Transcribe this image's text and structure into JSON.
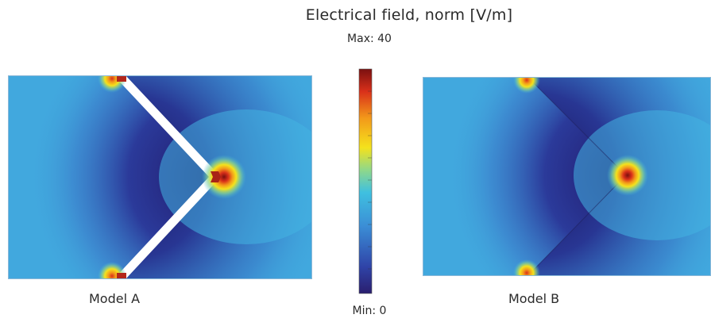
{
  "title": "Electrical field, norm [V/m]",
  "colorbar": {
    "max_label": "Max: 40",
    "min_label": "Min: 0",
    "max_value": 40,
    "min_value": 0,
    "colors": [
      "#2a1e6e",
      "#2f44a8",
      "#3b8ed6",
      "#3fc0e0",
      "#8fd88a",
      "#f4e21c",
      "#f39a1a",
      "#d9301a",
      "#7a1010"
    ]
  },
  "models": [
    {
      "caption": "Model A"
    },
    {
      "caption": "Model B"
    }
  ]
}
